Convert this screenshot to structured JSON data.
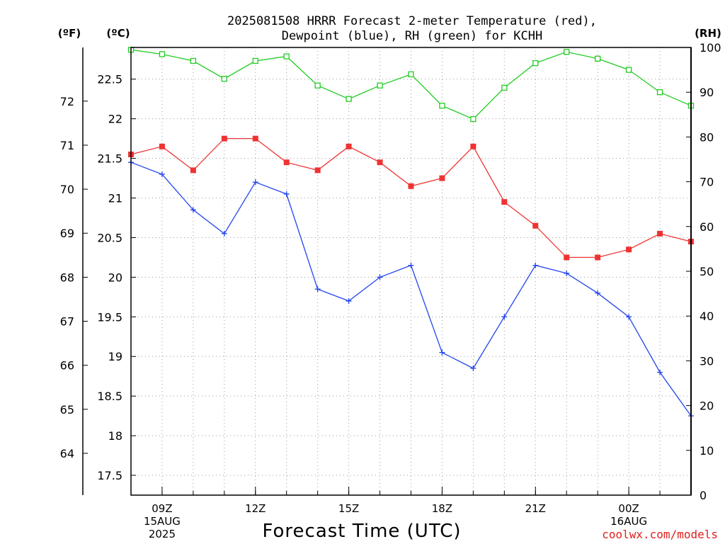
{
  "chart_data": {
    "type": "line",
    "title": [
      "2025081508 HRRR Forecast 2-meter Temperature (red),",
      "Dewpoint (blue), RH (green) for KCHH"
    ],
    "xlabel": "Forecast Time (UTC)",
    "unit_labels": {
      "fahrenheit": "(ºF)",
      "celsius": "(ºC)",
      "rh": "(RH)"
    },
    "watermark": "coolwx.com/models",
    "x_hours": [
      8,
      9,
      10,
      11,
      12,
      13,
      14,
      15,
      16,
      17,
      18,
      19,
      20,
      21,
      22,
      23,
      24,
      25,
      26
    ],
    "x_ticks": [
      {
        "hour": 9,
        "lines": [
          "09Z",
          "15AUG",
          "2025"
        ]
      },
      {
        "hour": 12,
        "lines": [
          "12Z"
        ]
      },
      {
        "hour": 15,
        "lines": [
          "15Z"
        ]
      },
      {
        "hour": 18,
        "lines": [
          "18Z"
        ]
      },
      {
        "hour": 21,
        "lines": [
          "21Z"
        ]
      },
      {
        "hour": 24,
        "lines": [
          "00Z",
          "16AUG"
        ]
      }
    ],
    "xlim": [
      8,
      26
    ],
    "celsius_axis": {
      "ylim": [
        17.25,
        22.9
      ],
      "ticks": [
        "17.5",
        "18",
        "18.5",
        "19",
        "19.5",
        "20",
        "20.5",
        "21",
        "21.5",
        "22",
        "22.5"
      ]
    },
    "fahrenheit_axis": {
      "ticks": [
        "64",
        "65",
        "66",
        "67",
        "68",
        "69",
        "70",
        "71",
        "72"
      ]
    },
    "rh_axis": {
      "ylim": [
        0,
        100
      ],
      "ticks": [
        "0",
        "10",
        "20",
        "30",
        "40",
        "50",
        "60",
        "70",
        "80",
        "90",
        "100"
      ]
    },
    "grid": true,
    "series": [
      {
        "name": "Temperature (red)",
        "axis": "celsius",
        "color": "#ee3333",
        "marker": "filled-square",
        "values": [
          21.55,
          21.65,
          21.35,
          21.75,
          21.75,
          21.45,
          21.35,
          21.65,
          21.45,
          21.15,
          21.25,
          21.65,
          20.95,
          20.65,
          20.25,
          20.25,
          20.35,
          20.55,
          20.45
        ]
      },
      {
        "name": "Dewpoint (blue)",
        "axis": "celsius",
        "color": "#2244ee",
        "marker": "plus",
        "values": [
          21.45,
          21.3,
          20.85,
          20.55,
          21.2,
          21.05,
          19.85,
          19.7,
          20.0,
          20.15,
          19.05,
          18.85,
          19.5,
          20.15,
          20.05,
          19.8,
          19.5,
          18.8,
          18.25
        ]
      },
      {
        "name": "RH (green)",
        "axis": "rh",
        "color": "#22cc22",
        "marker": "open-square",
        "values": [
          99.5,
          98.5,
          97.0,
          93.0,
          97.0,
          98.0,
          91.5,
          88.5,
          91.5,
          94.0,
          87.0,
          84.0,
          91.0,
          96.5,
          99.0,
          97.5,
          95.0,
          90.0,
          87.0
        ]
      }
    ]
  }
}
